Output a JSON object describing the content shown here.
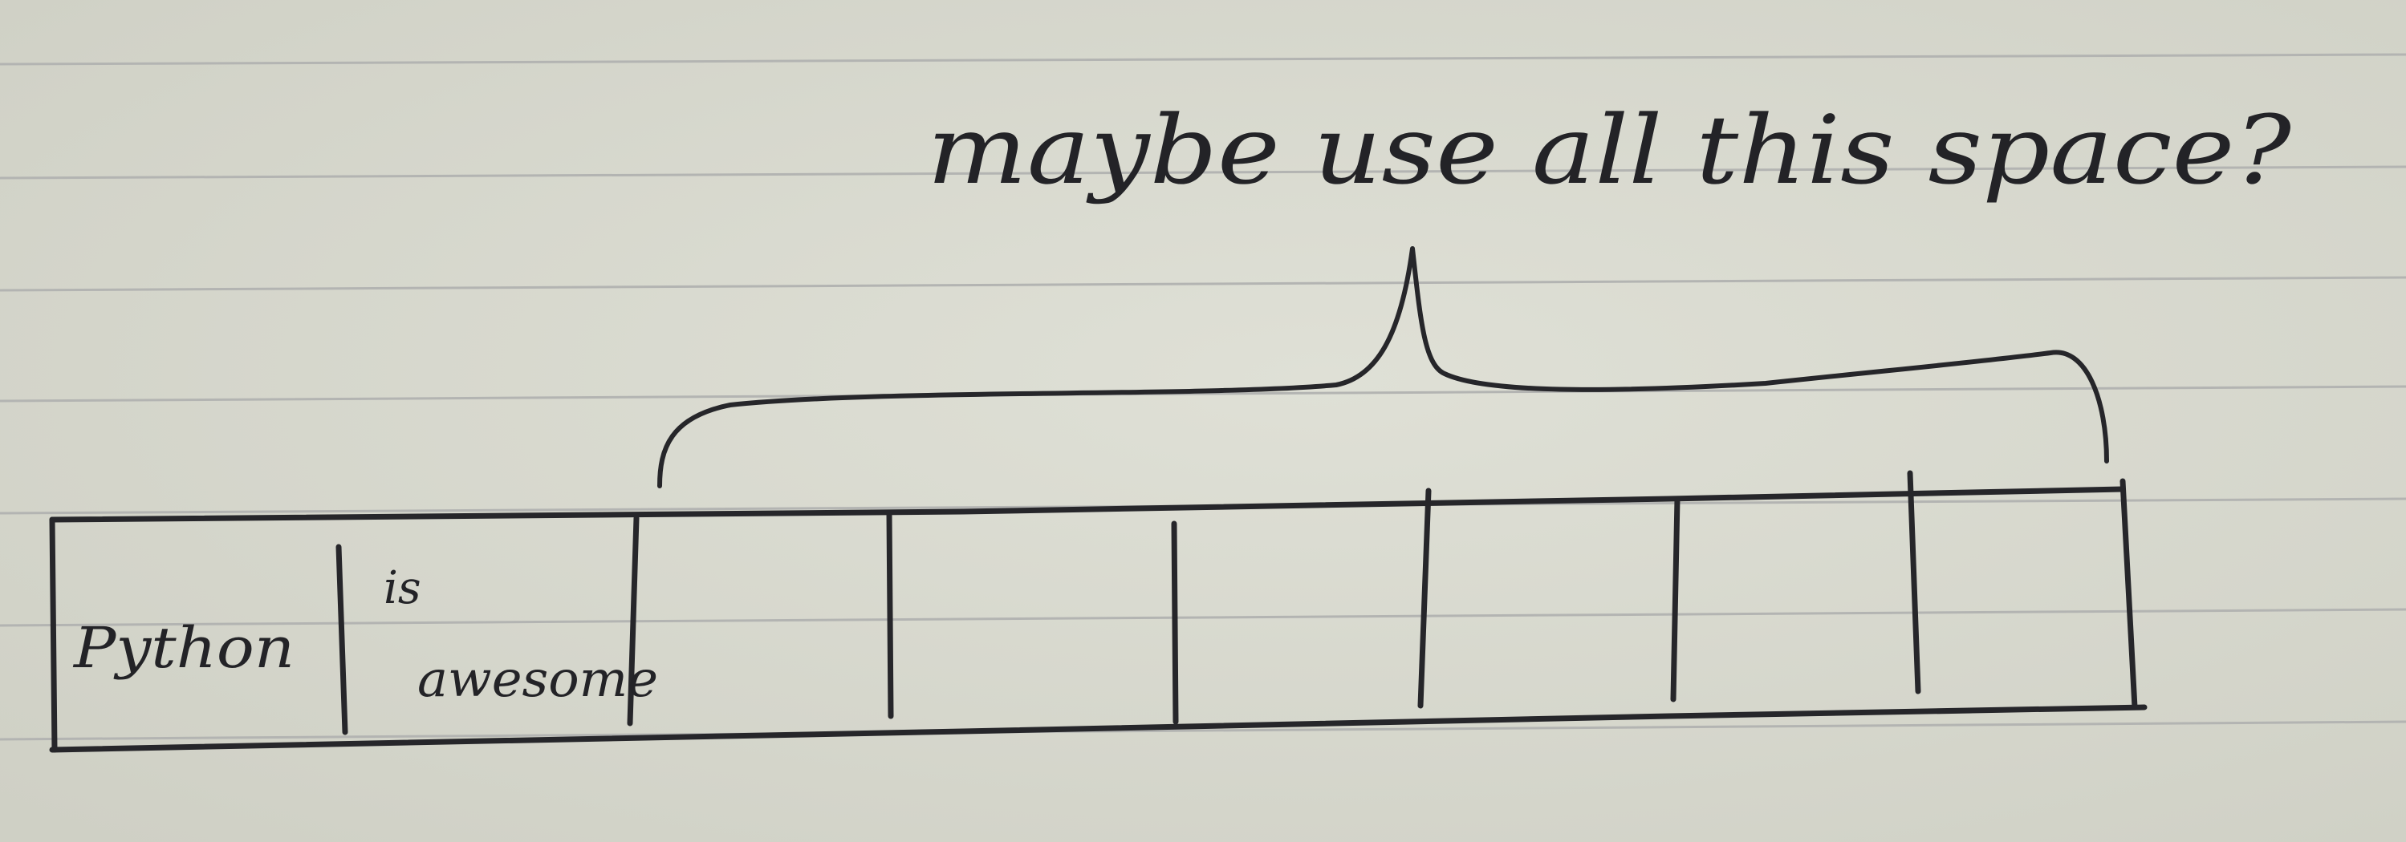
{
  "annotation": {
    "text": "maybe use all this space?"
  },
  "cells": [
    {
      "text": "Python"
    },
    {
      "text": "is",
      "text2": "awesome"
    },
    {
      "text": ""
    },
    {
      "text": ""
    },
    {
      "text": ""
    },
    {
      "text": ""
    },
    {
      "text": ""
    },
    {
      "text": ""
    }
  ],
  "colors": {
    "paper": "#d9d9ce",
    "rule": "#b3b4b2",
    "ink": "#26262a"
  }
}
